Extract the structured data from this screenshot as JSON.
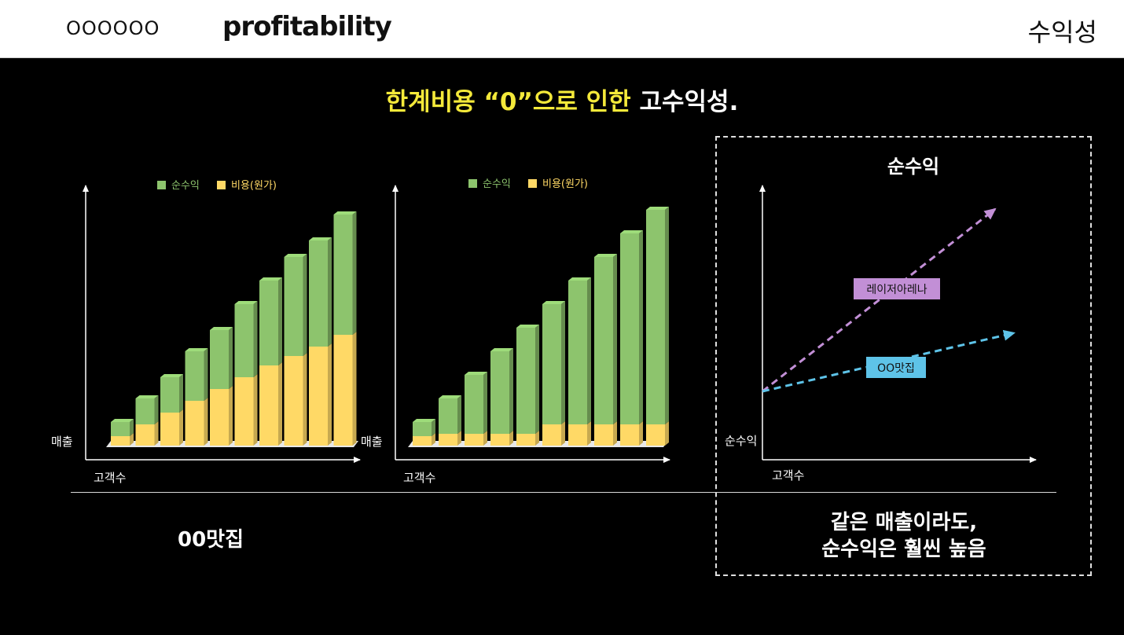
{
  "header": {
    "brand": "OOOOOO",
    "logo": "profitability",
    "section_title": "수익성"
  },
  "headline": {
    "highlight": "한계비용 “0”으로 인한",
    "rest": " 고수익성."
  },
  "colors": {
    "profit": "#8dc46d",
    "cost": "#ffd966",
    "purple_line": "#c28fd6",
    "blue_line": "#5ec3e8",
    "highlight": "#f4e93a"
  },
  "chart_data": [
    {
      "type": "bar",
      "stacked": true,
      "ylabel": "매출",
      "xlabel": "고객수",
      "legend_position": "top",
      "categories": [
        "1",
        "2",
        "3",
        "4",
        "5",
        "6",
        "7",
        "8",
        "9",
        "10"
      ],
      "series": [
        {
          "name": "순수익",
          "color": "#8dc46d",
          "values": [
            6,
            11,
            15,
            21,
            25,
            31,
            36,
            42,
            45,
            51
          ]
        },
        {
          "name": "비용(원가)",
          "color": "#ffd966",
          "values": [
            4,
            9,
            14,
            19,
            24,
            29,
            34,
            38,
            42,
            47
          ]
        }
      ]
    },
    {
      "type": "bar",
      "stacked": true,
      "ylabel": "매출",
      "xlabel": "고객수",
      "legend_position": "top",
      "categories": [
        "1",
        "2",
        "3",
        "4",
        "5",
        "6",
        "7",
        "8",
        "9",
        "10"
      ],
      "series": [
        {
          "name": "순수익",
          "color": "#8dc46d",
          "values": [
            6,
            15,
            25,
            35,
            45,
            51,
            61,
            71,
            81,
            91
          ]
        },
        {
          "name": "비용(원가)",
          "color": "#ffd966",
          "values": [
            4,
            5,
            5,
            5,
            5,
            9,
            9,
            9,
            9,
            9
          ]
        }
      ]
    },
    {
      "type": "line",
      "title": "순수익",
      "ylabel": "순수익",
      "xlabel": "고객수",
      "series": [
        {
          "name": "레이저아레나",
          "color": "#c28fd6",
          "style": "dashed",
          "values": [
            0,
            100
          ]
        },
        {
          "name": "OO맛집",
          "color": "#5ec3e8",
          "style": "dashed",
          "values": [
            0,
            32
          ]
        }
      ]
    }
  ],
  "captions": {
    "left": "00맛집",
    "right_line1": "같은 매출이라도,",
    "right_line2": "순수익은 훨씬 높음"
  }
}
